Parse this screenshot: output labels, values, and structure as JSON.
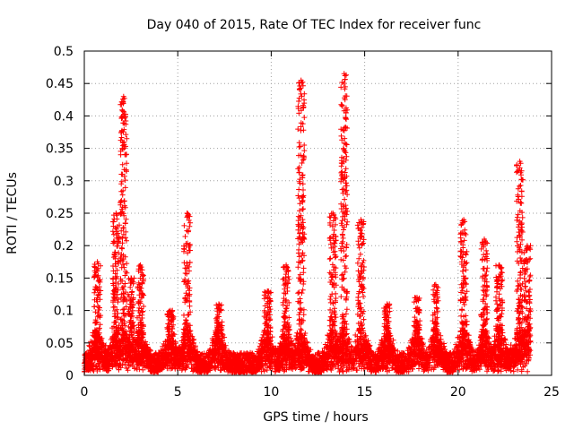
{
  "chart_data": {
    "type": "scatter",
    "title": "Day 040 of 2015, Rate Of TEC Index for receiver func",
    "xlabel": "GPS time / hours",
    "ylabel": "ROTI / TECUs",
    "xlim": [
      0,
      25
    ],
    "ylim": [
      0,
      0.5
    ],
    "xticks": [
      0,
      5,
      10,
      15,
      20,
      25
    ],
    "yticks": [
      0,
      0.05,
      0.1,
      0.15,
      0.2,
      0.25,
      0.3,
      0.35,
      0.4,
      0.45,
      0.5
    ],
    "xtick_labels": [
      "0",
      "5",
      "10",
      "15",
      "20",
      "25"
    ],
    "ytick_labels": [
      "0",
      "0.05",
      "0.1",
      "0.15",
      "0.2",
      "0.25",
      "0.3",
      "0.35",
      "0.4",
      "0.45",
      "0.5"
    ],
    "grid": true,
    "marker": "plus",
    "marker_color": "#ff0000",
    "x_data_range": [
      0,
      23.8
    ],
    "baseline_band": [
      0.0,
      0.03
    ],
    "bursts": [
      {
        "x": 0.7,
        "peak": 0.175
      },
      {
        "x": 1.7,
        "peak": 0.25
      },
      {
        "x": 2.1,
        "peak": 0.43
      },
      {
        "x": 2.5,
        "peak": 0.15
      },
      {
        "x": 3.0,
        "peak": 0.17
      },
      {
        "x": 4.6,
        "peak": 0.1
      },
      {
        "x": 5.5,
        "peak": 0.25
      },
      {
        "x": 7.2,
        "peak": 0.11
      },
      {
        "x": 9.8,
        "peak": 0.13
      },
      {
        "x": 10.8,
        "peak": 0.17
      },
      {
        "x": 11.6,
        "peak": 0.455
      },
      {
        "x": 13.3,
        "peak": 0.25
      },
      {
        "x": 13.9,
        "peak": 0.465
      },
      {
        "x": 14.8,
        "peak": 0.24
      },
      {
        "x": 16.2,
        "peak": 0.11
      },
      {
        "x": 17.8,
        "peak": 0.12
      },
      {
        "x": 18.8,
        "peak": 0.14
      },
      {
        "x": 20.3,
        "peak": 0.24
      },
      {
        "x": 21.4,
        "peak": 0.21
      },
      {
        "x": 22.2,
        "peak": 0.17
      },
      {
        "x": 23.3,
        "peak": 0.33
      },
      {
        "x": 23.7,
        "peak": 0.2
      }
    ]
  }
}
